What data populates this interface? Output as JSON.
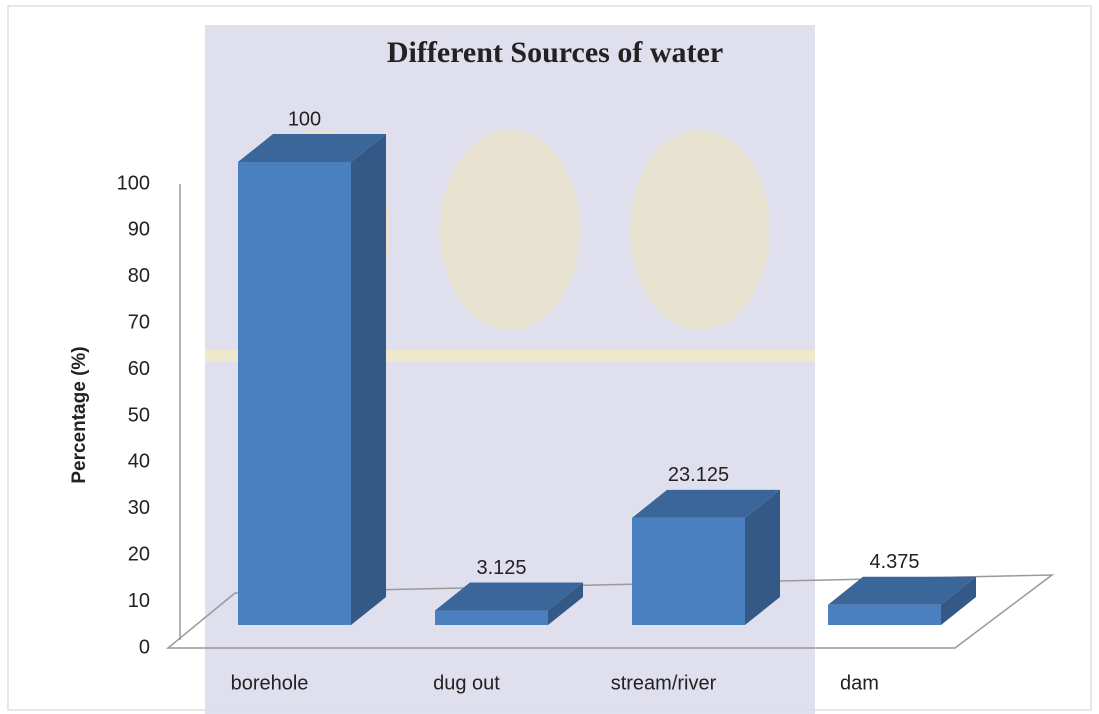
{
  "chart_data": {
    "type": "bar3d",
    "title": "Different Sources of water",
    "y_label": "Percentage  (%)",
    "categories": [
      "borehole",
      "dug out",
      "stream/river",
      "dam"
    ],
    "values": [
      100,
      3.125,
      23.125,
      4.375
    ],
    "color": "#4a7fc0",
    "ylim": [
      0,
      100
    ],
    "yticks": [
      0,
      10,
      20,
      30,
      40,
      50,
      60,
      70,
      80,
      90,
      100
    ],
    "grid": false
  }
}
